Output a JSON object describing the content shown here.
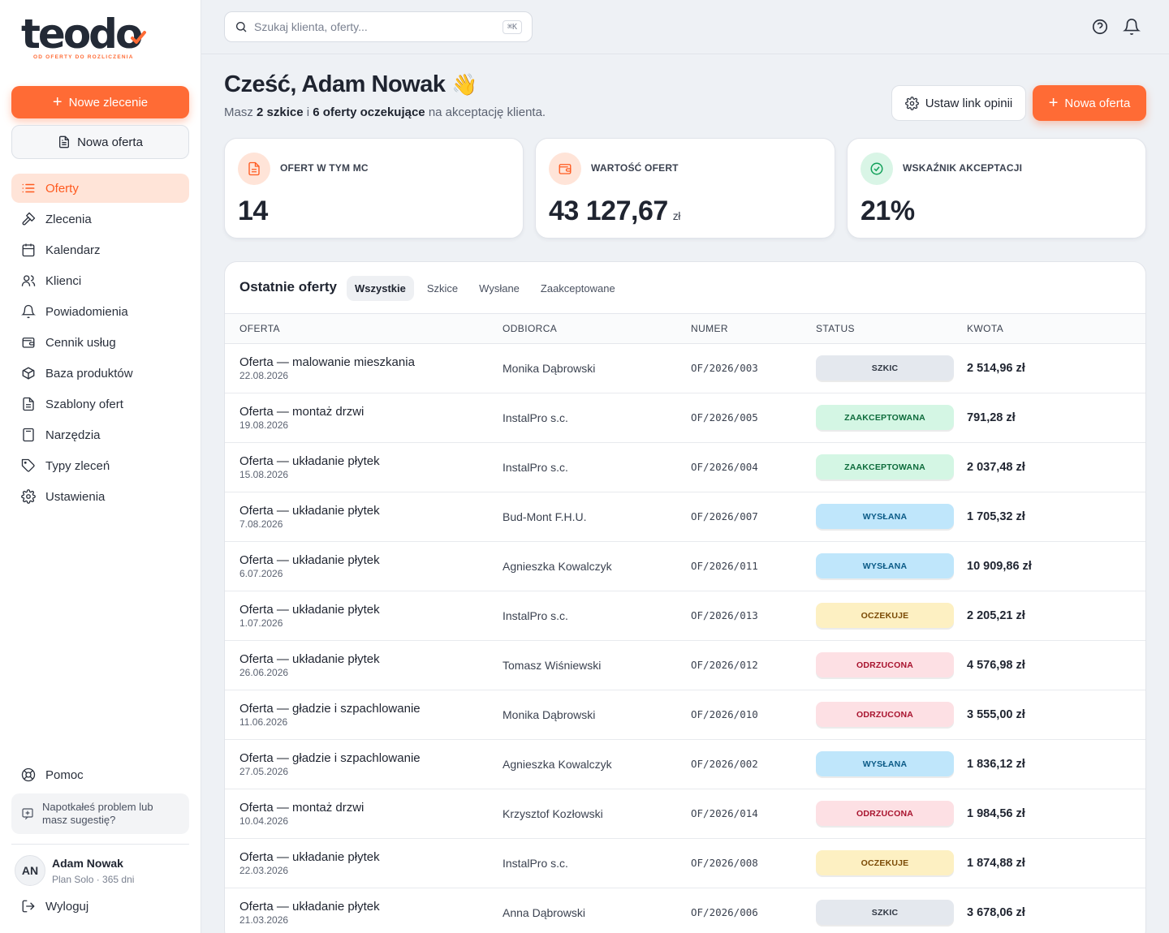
{
  "brand": {
    "name": "teodo",
    "tagline": "OD OFERTY DO ROZLICZENIA",
    "accent": "#ff6b35"
  },
  "sidebar": {
    "new_order": "Nowe zlecenie",
    "new_offer": "Nowa oferta",
    "items": [
      {
        "label": "Oferty",
        "icon": "list-icon"
      },
      {
        "label": "Zlecenia",
        "icon": "hammer-icon"
      },
      {
        "label": "Kalendarz",
        "icon": "calendar-icon"
      },
      {
        "label": "Klienci",
        "icon": "users-icon"
      },
      {
        "label": "Powiadomienia",
        "icon": "bell-icon"
      },
      {
        "label": "Cennik usług",
        "icon": "wallet-icon"
      },
      {
        "label": "Baza produktów",
        "icon": "box-icon"
      },
      {
        "label": "Szablony ofert",
        "icon": "file-text-icon"
      },
      {
        "label": "Narzędzia",
        "icon": "calculator-icon"
      },
      {
        "label": "Typy zleceń",
        "icon": "tag-icon"
      },
      {
        "label": "Ustawienia",
        "icon": "gear-icon"
      }
    ],
    "help": "Pomoc",
    "feedback": "Napotkałeś problem lub masz sugestię?",
    "user": {
      "initials": "AN",
      "name": "Adam Nowak",
      "plan": "Plan Solo · 365 dni"
    },
    "logout": "Wyloguj"
  },
  "topbar": {
    "search_placeholder": "Szukaj klienta, oferty...",
    "shortcut": "⌘K"
  },
  "header": {
    "greeting": "Cześć, Adam Nowak",
    "emoji": "👋",
    "sub_prefix": "Masz",
    "drafts": "2 szkice",
    "sub_mid": "i",
    "pending": "6 oferty oczekujące",
    "sub_suffix": "na akceptację klienta.",
    "btn_review_link": "Ustaw link opinii",
    "btn_new_offer": "Nowa oferta"
  },
  "stats": [
    {
      "label": "OFERT W TYM MC",
      "value": "14",
      "unit": "",
      "icon": "document-icon"
    },
    {
      "label": "WARTOŚĆ OFERT",
      "value": "43 127,67",
      "unit": "zł",
      "icon": "wallet-icon"
    },
    {
      "label": "WSKAŹNIK AKCEPTACJI",
      "value": "21%",
      "unit": "",
      "icon": "check-circle-icon"
    }
  ],
  "table": {
    "title": "Ostatnie oferty",
    "tabs": [
      "Wszystkie",
      "Szkice",
      "Wysłane",
      "Zaakceptowane"
    ],
    "active_tab": 0,
    "columns": [
      "OFERTA",
      "ODBIORCA",
      "NUMER",
      "STATUS",
      "KWOTA"
    ],
    "rows": [
      {
        "title": "Oferta — malowanie mieszkania",
        "date": "22.08.2026",
        "client": "Monika Dąbrowski",
        "number": "OF/2026/003",
        "status": "SZKIC",
        "status_key": "szkic",
        "amount": "2 514,96 zł"
      },
      {
        "title": "Oferta — montaż drzwi",
        "date": "19.08.2026",
        "client": "InstalPro s.c.",
        "number": "OF/2026/005",
        "status": "ZAAKCEPTOWANA",
        "status_key": "zaakceptowana",
        "amount": "791,28 zł"
      },
      {
        "title": "Oferta — układanie płytek",
        "date": "15.08.2026",
        "client": "InstalPro s.c.",
        "number": "OF/2026/004",
        "status": "ZAAKCEPTOWANA",
        "status_key": "zaakceptowana",
        "amount": "2 037,48 zł"
      },
      {
        "title": "Oferta — układanie płytek",
        "date": "7.08.2026",
        "client": "Bud-Mont F.H.U.",
        "number": "OF/2026/007",
        "status": "WYSŁANA",
        "status_key": "wyslana",
        "amount": "1 705,32 zł"
      },
      {
        "title": "Oferta — układanie płytek",
        "date": "6.07.2026",
        "client": "Agnieszka Kowalczyk",
        "number": "OF/2026/011",
        "status": "WYSŁANA",
        "status_key": "wyslana",
        "amount": "10 909,86 zł"
      },
      {
        "title": "Oferta — układanie płytek",
        "date": "1.07.2026",
        "client": "InstalPro s.c.",
        "number": "OF/2026/013",
        "status": "OCZEKUJE",
        "status_key": "oczekuje",
        "amount": "2 205,21 zł"
      },
      {
        "title": "Oferta — układanie płytek",
        "date": "26.06.2026",
        "client": "Tomasz Wiśniewski",
        "number": "OF/2026/012",
        "status": "ODRZUCONA",
        "status_key": "odrzucona",
        "amount": "4 576,98 zł"
      },
      {
        "title": "Oferta — gładzie i szpachlowanie",
        "date": "11.06.2026",
        "client": "Monika Dąbrowski",
        "number": "OF/2026/010",
        "status": "ODRZUCONA",
        "status_key": "odrzucona",
        "amount": "3 555,00 zł"
      },
      {
        "title": "Oferta — gładzie i szpachlowanie",
        "date": "27.05.2026",
        "client": "Agnieszka Kowalczyk",
        "number": "OF/2026/002",
        "status": "WYSŁANA",
        "status_key": "wyslana",
        "amount": "1 836,12 zł"
      },
      {
        "title": "Oferta — montaż drzwi",
        "date": "10.04.2026",
        "client": "Krzysztof Kozłowski",
        "number": "OF/2026/014",
        "status": "ODRZUCONA",
        "status_key": "odrzucona",
        "amount": "1 984,56 zł"
      },
      {
        "title": "Oferta — układanie płytek",
        "date": "22.03.2026",
        "client": "InstalPro s.c.",
        "number": "OF/2026/008",
        "status": "OCZEKUJE",
        "status_key": "oczekuje",
        "amount": "1 874,88 zł"
      },
      {
        "title": "Oferta — układanie płytek",
        "date": "21.03.2026",
        "client": "Anna Dąbrowski",
        "number": "OF/2026/006",
        "status": "SZKIC",
        "status_key": "szkic",
        "amount": "3 678,06 zł"
      }
    ]
  }
}
